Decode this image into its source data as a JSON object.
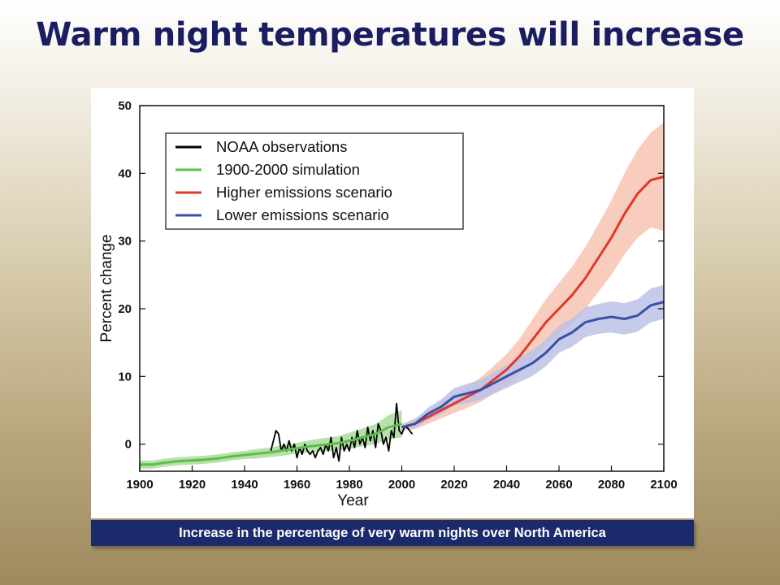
{
  "slide": {
    "title": "Warm night temperatures will increase",
    "caption": "Increase in the percentage of very warm nights over North America"
  },
  "chart_data": {
    "type": "line",
    "title": "",
    "xlabel": "Year",
    "ylabel": "Percent change",
    "xlim": [
      1900,
      2100
    ],
    "ylim": [
      -4,
      50
    ],
    "x_ticks": [
      1900,
      1920,
      1940,
      1960,
      1980,
      2000,
      2020,
      2040,
      2060,
      2080,
      2100
    ],
    "y_ticks": [
      0,
      10,
      20,
      30,
      40,
      50
    ],
    "grid": false,
    "legend_position": "top-left",
    "series": [
      {
        "name": "NOAA observations",
        "color": "#000000",
        "band": false,
        "points": [
          [
            1950,
            -1
          ],
          [
            1952,
            2
          ],
          [
            1953,
            1.5
          ],
          [
            1954,
            -1
          ],
          [
            1955,
            0
          ],
          [
            1956,
            -1
          ],
          [
            1957,
            0.5
          ],
          [
            1958,
            -1
          ],
          [
            1959,
            0
          ],
          [
            1960,
            -2
          ],
          [
            1961,
            -0.5
          ],
          [
            1962,
            -1.5
          ],
          [
            1963,
            0
          ],
          [
            1964,
            -1
          ],
          [
            1965,
            -1.5
          ],
          [
            1966,
            -1
          ],
          [
            1967,
            -2
          ],
          [
            1968,
            -1
          ],
          [
            1969,
            -0.5
          ],
          [
            1970,
            -1.5
          ],
          [
            1971,
            0
          ],
          [
            1972,
            -1
          ],
          [
            1973,
            1
          ],
          [
            1974,
            -2
          ],
          [
            1975,
            -0.5
          ],
          [
            1976,
            -2.5
          ],
          [
            1977,
            1
          ],
          [
            1978,
            -1
          ],
          [
            1979,
            0
          ],
          [
            1980,
            -1
          ],
          [
            1981,
            1
          ],
          [
            1982,
            -0.5
          ],
          [
            1983,
            2
          ],
          [
            1984,
            0
          ],
          [
            1985,
            1
          ],
          [
            1986,
            -0.5
          ],
          [
            1987,
            2.5
          ],
          [
            1988,
            0.5
          ],
          [
            1989,
            2
          ],
          [
            1990,
            -0.5
          ],
          [
            1991,
            3
          ],
          [
            1992,
            2
          ],
          [
            1993,
            0
          ],
          [
            1994,
            1
          ],
          [
            1995,
            -1
          ],
          [
            1996,
            2
          ],
          [
            1997,
            1
          ],
          [
            1998,
            6
          ],
          [
            1999,
            2
          ],
          [
            2000,
            1.5
          ],
          [
            2001,
            2.5
          ],
          [
            2002,
            2.5
          ],
          [
            2003,
            2
          ],
          [
            2004,
            1.5
          ]
        ]
      },
      {
        "name": "1900-2000 simulation",
        "color": "#5dbd4c",
        "band_color": "#a9dc9b",
        "band": true,
        "points": [
          [
            1900,
            -3
          ],
          [
            1905,
            -3
          ],
          [
            1910,
            -2.7
          ],
          [
            1915,
            -2.5
          ],
          [
            1920,
            -2.4
          ],
          [
            1925,
            -2.3
          ],
          [
            1930,
            -2.1
          ],
          [
            1935,
            -1.8
          ],
          [
            1940,
            -1.6
          ],
          [
            1945,
            -1.4
          ],
          [
            1950,
            -1.2
          ],
          [
            1955,
            -0.9
          ],
          [
            1960,
            -0.6
          ],
          [
            1965,
            -0.3
          ],
          [
            1970,
            -0.1
          ],
          [
            1975,
            0.1
          ],
          [
            1980,
            0.5
          ],
          [
            1985,
            1
          ],
          [
            1990,
            1.5
          ],
          [
            1995,
            2.5
          ],
          [
            2000,
            3
          ]
        ],
        "band_halfwidth": [
          0.6,
          0.6,
          0.6,
          0.6,
          0.6,
          0.6,
          0.6,
          0.6,
          0.6,
          0.7,
          0.7,
          0.8,
          0.8,
          0.9,
          1,
          1,
          1.2,
          1.3,
          1.5,
          1.8,
          2
        ]
      },
      {
        "name": "Higher emissions scenario",
        "color": "#e0382b",
        "band_color": "#f7c4b1",
        "band": true,
        "points": [
          [
            2000,
            2.5
          ],
          [
            2005,
            3
          ],
          [
            2010,
            4
          ],
          [
            2015,
            5
          ],
          [
            2020,
            6
          ],
          [
            2025,
            7
          ],
          [
            2030,
            8
          ],
          [
            2035,
            9.5
          ],
          [
            2040,
            11
          ],
          [
            2045,
            13
          ],
          [
            2050,
            15.5
          ],
          [
            2055,
            18
          ],
          [
            2060,
            20
          ],
          [
            2065,
            22
          ],
          [
            2070,
            24.5
          ],
          [
            2075,
            27.5
          ],
          [
            2080,
            30.5
          ],
          [
            2085,
            34
          ],
          [
            2090,
            37
          ],
          [
            2095,
            39
          ],
          [
            2100,
            39.5
          ]
        ],
        "band_halfwidth": [
          0.5,
          0.8,
          1,
          1.2,
          1.4,
          1.6,
          1.8,
          2,
          2.3,
          2.6,
          3,
          3.4,
          3.8,
          4.2,
          4.6,
          5,
          5.5,
          6,
          6.5,
          7,
          8
        ]
      },
      {
        "name": "Lower emissions scenario",
        "color": "#3a4fa8",
        "band_color": "#bcc2e6",
        "band": true,
        "points": [
          [
            2000,
            2.5
          ],
          [
            2005,
            3
          ],
          [
            2010,
            4.5
          ],
          [
            2015,
            5.5
          ],
          [
            2020,
            7
          ],
          [
            2025,
            7.5
          ],
          [
            2030,
            8
          ],
          [
            2035,
            9
          ],
          [
            2040,
            10
          ],
          [
            2045,
            11
          ],
          [
            2050,
            12
          ],
          [
            2055,
            13.5
          ],
          [
            2060,
            15.5
          ],
          [
            2065,
            16.5
          ],
          [
            2070,
            18
          ],
          [
            2075,
            18.5
          ],
          [
            2080,
            18.8
          ],
          [
            2085,
            18.5
          ],
          [
            2090,
            19
          ],
          [
            2095,
            20.5
          ],
          [
            2100,
            21
          ]
        ],
        "band_halfwidth": [
          0.4,
          0.6,
          0.9,
          1.1,
          1.3,
          1.4,
          1.5,
          1.6,
          1.7,
          1.8,
          1.9,
          2,
          2,
          2.1,
          2.2,
          2.2,
          2.3,
          2.3,
          2.4,
          2.5,
          2.5
        ]
      }
    ]
  }
}
